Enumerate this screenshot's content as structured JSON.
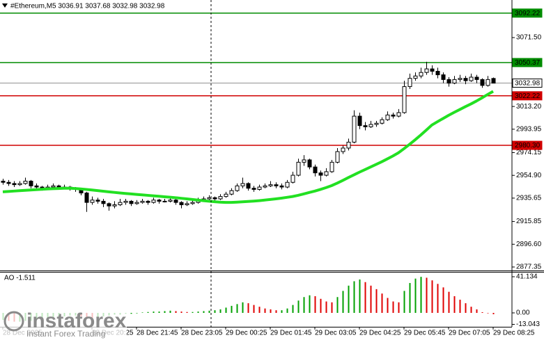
{
  "chart_data": {
    "type": "candlestick",
    "title": "#Ethereum,M5  3036.91 3037.68 3032.98 3032.98",
    "up_color": "#ffffff",
    "down_color": "#000000",
    "ylim": [
      2875,
      3103.3
    ],
    "yticks": [
      {
        "value": 3071.5,
        "label": "3071.50"
      },
      {
        "value": 3013.2,
        "label": "3013.20"
      },
      2993.95,
      2974.15,
      {
        "value": 2954.9,
        "label": "2954.90"
      },
      2935.65,
      2915.85,
      {
        "value": 2896.6,
        "label": "2896.60"
      },
      2877.35
    ],
    "categories": [
      "28 Dec 2025",
      null,
      null,
      null,
      null,
      null,
      null,
      null,
      null,
      null,
      null,
      null,
      null,
      null,
      null,
      null,
      "28 Dec 20:25",
      null,
      null,
      null,
      null,
      null,
      null,
      null,
      "28 Dec 21:45",
      null,
      null,
      null,
      null,
      null,
      null,
      null,
      "28 Dec 23:05",
      null,
      null,
      null,
      null,
      null,
      null,
      null,
      "29 Dec 00:25",
      null,
      null,
      null,
      null,
      null,
      null,
      null,
      "29 Dec 01:45",
      null,
      null,
      null,
      null,
      null,
      null,
      null,
      "29 Dec 03:05",
      null,
      null,
      null,
      null,
      null,
      null,
      null,
      "29 Dec 04:25",
      null,
      null,
      null,
      null,
      null,
      null,
      null,
      "29 Dec 05:45",
      null,
      null,
      null,
      null,
      null,
      null,
      null,
      "29 Dec 07:05",
      null,
      null,
      null,
      null,
      null,
      null,
      null,
      "29 Dec 08:25"
    ],
    "ohlc": [
      [
        2950,
        2952,
        2947,
        2949
      ],
      [
        2949,
        2951,
        2946,
        2948
      ],
      [
        2948,
        2950,
        2945,
        2947
      ],
      [
        2947,
        2950,
        2946,
        2948
      ],
      [
        2948,
        2953,
        2947,
        2950
      ],
      [
        2950,
        2951,
        2944,
        2946
      ],
      [
        2946,
        2948,
        2943,
        2945
      ],
      [
        2945,
        2946,
        2942,
        2944
      ],
      [
        2944,
        2947,
        2943,
        2945
      ],
      [
        2945,
        2948,
        2944,
        2946
      ],
      [
        2946,
        2947,
        2943,
        2945
      ],
      [
        2945,
        2947,
        2944,
        2945
      ],
      [
        2945,
        2946,
        2942,
        2944
      ],
      [
        2944,
        2945,
        2941,
        2943
      ],
      [
        2943,
        2944,
        2938,
        2940
      ],
      [
        2940,
        2941,
        2924,
        2932
      ],
      [
        2932,
        2937,
        2930,
        2934
      ],
      [
        2934,
        2936,
        2931,
        2933
      ],
      [
        2933,
        2935,
        2928,
        2931
      ],
      [
        2931,
        2932,
        2925,
        2929
      ],
      [
        2929,
        2933,
        2927,
        2930
      ],
      [
        2930,
        2935,
        2929,
        2932
      ],
      [
        2932,
        2935,
        2930,
        2933
      ],
      [
        2933,
        2934,
        2929,
        2931
      ],
      [
        2931,
        2934,
        2930,
        2932
      ],
      [
        2932,
        2935,
        2931,
        2933
      ],
      [
        2933,
        2934,
        2930,
        2932
      ],
      [
        2932,
        2936,
        2931,
        2934
      ],
      [
        2934,
        2935,
        2931,
        2933
      ],
      [
        2933,
        2935,
        2932,
        2933
      ],
      [
        2933,
        2936,
        2932,
        2934
      ],
      [
        2934,
        2935,
        2930,
        2932
      ],
      [
        2932,
        2933,
        2927,
        2930
      ],
      [
        2930,
        2933,
        2929,
        2931
      ],
      [
        2931,
        2934,
        2930,
        2932
      ],
      [
        2932,
        2936,
        2931,
        2934
      ],
      [
        2934,
        2937,
        2933,
        2935
      ],
      [
        2935,
        2938,
        2934,
        2936
      ],
      [
        2936,
        2937,
        2933,
        2935
      ],
      [
        2935,
        2939,
        2934,
        2937
      ],
      [
        2937,
        2941,
        2936,
        2939
      ],
      [
        2939,
        2944,
        2938,
        2942
      ],
      [
        2942,
        2948,
        2941,
        2946
      ],
      [
        2946,
        2953,
        2944,
        2948
      ],
      [
        2948,
        2949,
        2942,
        2944
      ],
      [
        2944,
        2946,
        2941,
        2943
      ],
      [
        2943,
        2947,
        2942,
        2945
      ],
      [
        2945,
        2948,
        2944,
        2946
      ],
      [
        2946,
        2950,
        2945,
        2947
      ],
      [
        2947,
        2949,
        2944,
        2946
      ],
      [
        2946,
        2948,
        2943,
        2945
      ],
      [
        2945,
        2951,
        2944,
        2949
      ],
      [
        2949,
        2958,
        2948,
        2955
      ],
      [
        2955,
        2969,
        2954,
        2966
      ],
      [
        2966,
        2972,
        2963,
        2968
      ],
      [
        2968,
        2969,
        2960,
        2962
      ],
      [
        2962,
        2964,
        2954,
        2957
      ],
      [
        2957,
        2959,
        2950,
        2955
      ],
      [
        2955,
        2961,
        2954,
        2958
      ],
      [
        2958,
        2968,
        2957,
        2966
      ],
      [
        2966,
        2978,
        2965,
        2975
      ],
      [
        2975,
        2980,
        2973,
        2978
      ],
      [
        2978,
        2986,
        2976,
        2983
      ],
      [
        2983,
        3010,
        2982,
        3005
      ],
      [
        3005,
        3008,
        2994,
        2997
      ],
      [
        2997,
        3000,
        2993,
        2996
      ],
      [
        2996,
        3001,
        2995,
        2998
      ],
      [
        2998,
        3001,
        2996,
        2999
      ],
      [
        2999,
        3004,
        2998,
        3002
      ],
      [
        3002,
        3009,
        3001,
        3006
      ],
      [
        3006,
        3008,
        3003,
        3005
      ],
      [
        3005,
        3011,
        3004,
        3008
      ],
      [
        3008,
        3035,
        3007,
        3030
      ],
      [
        3030,
        3041,
        3028,
        3037
      ],
      [
        3037,
        3042,
        3035,
        3039
      ],
      [
        3039,
        3046,
        3037,
        3042
      ],
      [
        3042,
        3051,
        3040,
        3045
      ],
      [
        3045,
        3048,
        3040,
        3043
      ],
      [
        3043,
        3046,
        3037,
        3040
      ],
      [
        3040,
        3042,
        3033,
        3036
      ],
      [
        3036,
        3038,
        3030,
        3033
      ],
      [
        3033,
        3039,
        3032,
        3036
      ],
      [
        3036,
        3040,
        3034,
        3037
      ],
      [
        3037,
        3039,
        3032,
        3035
      ],
      [
        3035,
        3041,
        3034,
        3038
      ],
      [
        3038,
        3040,
        3033,
        3036
      ],
      [
        3036,
        3037,
        3029,
        3031
      ],
      [
        3031,
        3039,
        3030,
        3036
      ],
      [
        3036.91,
        3037.68,
        3032.98,
        3032.98
      ]
    ],
    "ma": {
      "color": "#22e022",
      "values": [
        2941,
        2941.3,
        2941.6,
        2941.9,
        2942.2,
        2942.5,
        2942.8,
        2943.1,
        2943.4,
        2943.6,
        2943.8,
        2944,
        2944,
        2943.8,
        2943.4,
        2943,
        2942.5,
        2942,
        2941.5,
        2941,
        2940.5,
        2940,
        2939.6,
        2939.2,
        2938.8,
        2938.4,
        2938,
        2937.6,
        2937.2,
        2936.8,
        2936.4,
        2936,
        2935.5,
        2935,
        2934.5,
        2934,
        2933.5,
        2933,
        2932.6,
        2932.2,
        2932,
        2932,
        2932.2,
        2932.5,
        2932.8,
        2933.1,
        2933.5,
        2934,
        2934.5,
        2935,
        2935.6,
        2936.3,
        2937,
        2938,
        2939.2,
        2940.4,
        2941.6,
        2943,
        2944.5,
        2946.2,
        2948.3,
        2950.6,
        2953,
        2955.3,
        2957.6,
        2959.8,
        2962,
        2964.2,
        2966.4,
        2968.8,
        2971.3,
        2974,
        2977.5,
        2981.2,
        2985,
        2989,
        2993.2,
        2997.5,
        3000.3,
        3003,
        3005.7,
        3008.2,
        3010.6,
        3013,
        3015.3,
        3017.8,
        3020.5,
        3023.3,
        3026
      ]
    },
    "levels": [
      {
        "value": 3092.22,
        "color": "#008c00"
      },
      {
        "value": 3050.37,
        "color": "#008c00"
      },
      {
        "value": 3022.22,
        "color": "#d00000"
      },
      {
        "value": 2980.3,
        "label": "2980.30",
        "color": "#d00000"
      }
    ],
    "current": {
      "value": 3032.98,
      "color": "#b0b0b0"
    },
    "ao": {
      "title": "AO -1.511",
      "up_color": "#00a000",
      "down_color": "#e00000",
      "ylim": [
        -13.043,
        41.134
      ],
      "yticks": [
        41.134,
        {
          "value": 0,
          "label": "0.00"
        },
        -13.043
      ],
      "values": [
        -8,
        -9,
        -10,
        -10,
        -9,
        -9,
        -8,
        -7,
        -7,
        -6,
        -5,
        -4,
        -3,
        -3,
        -4,
        -5,
        -6,
        -5,
        -4,
        -3,
        -2,
        -2,
        -1,
        -1,
        -0.5,
        0.5,
        1,
        1.5,
        1.5,
        2,
        2.5,
        2,
        1.5,
        1,
        1,
        1.5,
        2,
        2.5,
        3,
        4,
        6,
        8,
        10,
        12,
        11,
        9,
        7,
        5,
        4,
        3,
        3,
        5,
        9,
        14,
        18,
        20,
        19,
        16,
        13,
        12,
        18,
        25,
        31,
        36,
        38,
        35,
        31,
        27,
        22,
        17,
        13,
        12,
        25,
        34,
        39,
        41,
        40,
        37,
        33,
        29,
        24,
        19,
        15,
        11,
        7,
        4,
        0.8,
        -0.5,
        -1.511
      ]
    },
    "watermark": {
      "name": "instaforex",
      "tagline": "Instant Forex Trading"
    }
  }
}
